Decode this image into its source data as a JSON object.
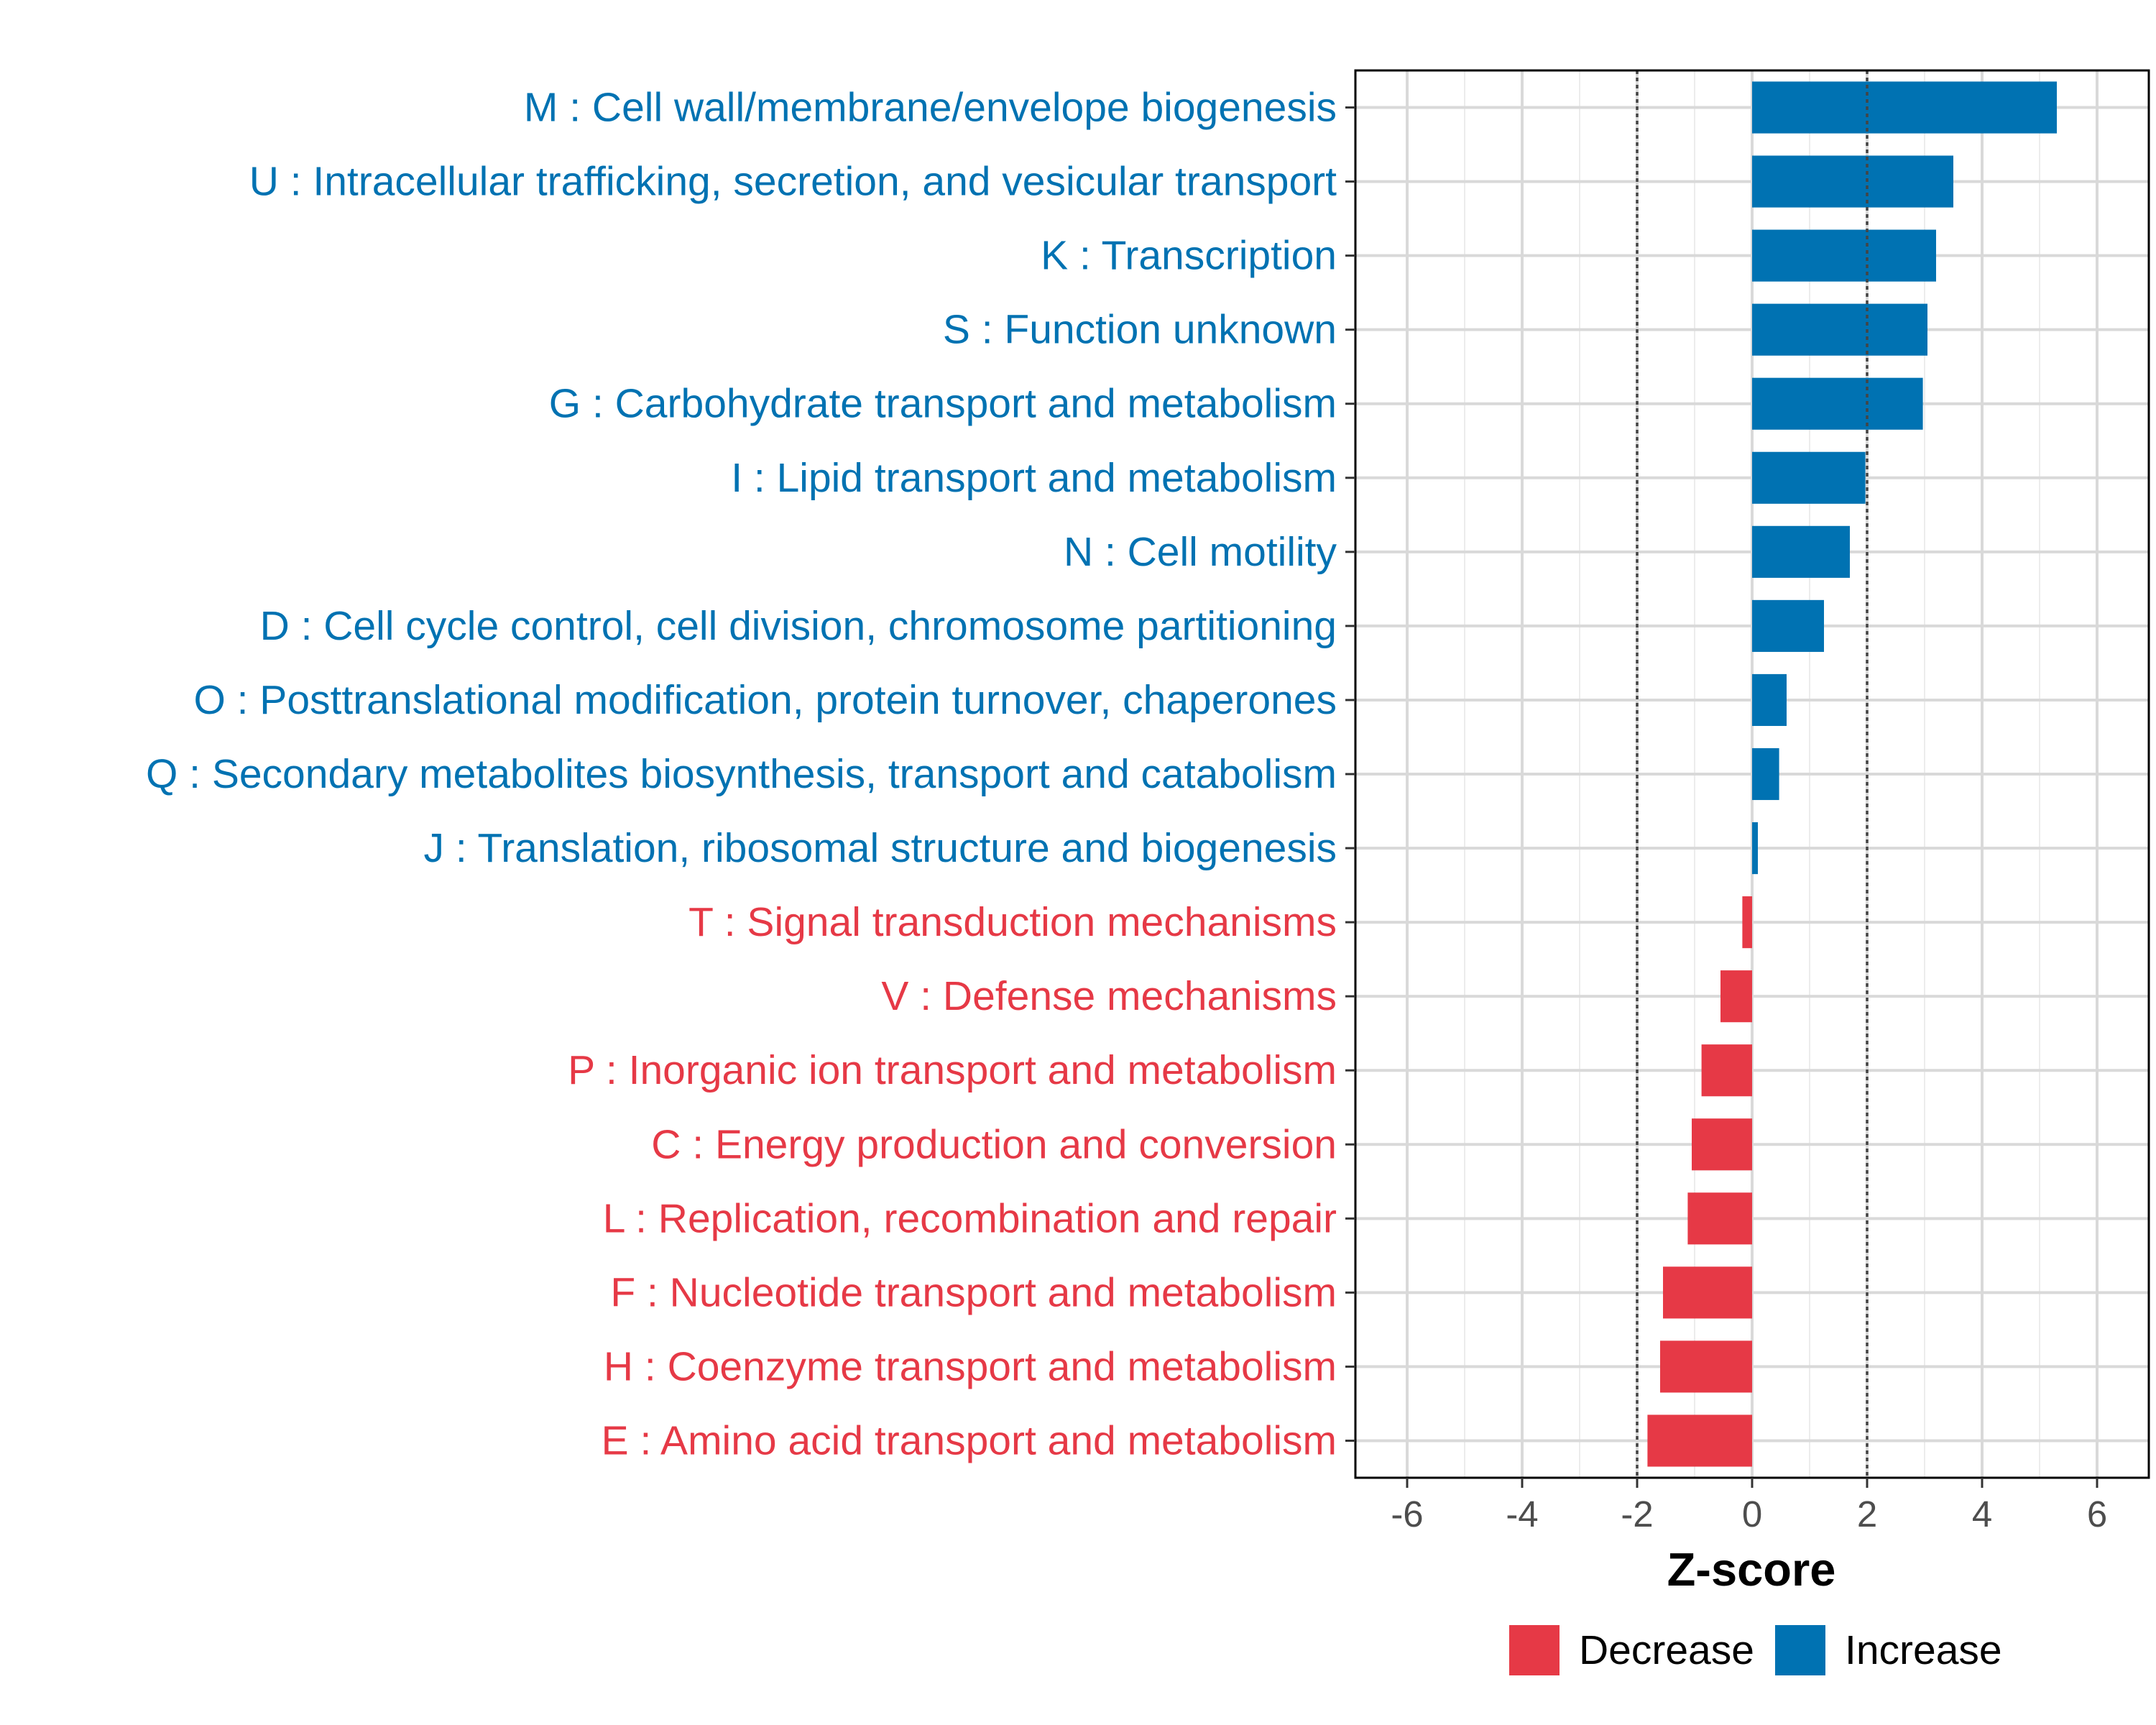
{
  "chart_data": {
    "type": "bar",
    "orientation": "horizontal",
    "xlabel": "Z-score",
    "xlim": [
      -6.9,
      6.9
    ],
    "xticks": [
      -6,
      -4,
      -2,
      0,
      2,
      4,
      6
    ],
    "tick_labels": [
      "-6",
      "-4",
      "-2",
      "0",
      "2",
      "4",
      "6"
    ],
    "reference_lines": [
      -2,
      2
    ],
    "grid": true,
    "colors": {
      "Increase": "#0072b2",
      "Decrease": "#e63946"
    },
    "legend": {
      "position": "bottom",
      "entries": [
        {
          "name": "Decrease",
          "color": "#e63946"
        },
        {
          "name": "Increase",
          "color": "#0072b2"
        }
      ]
    },
    "categories": [
      {
        "label": "M : Cell wall/membrane/envelope biogenesis",
        "value": 5.3,
        "group": "Increase"
      },
      {
        "label": "U : Intracellular trafficking, secretion, and vesicular transport",
        "value": 3.5,
        "group": "Increase"
      },
      {
        "label": "K : Transcription",
        "value": 3.2,
        "group": "Increase"
      },
      {
        "label": "S : Function unknown",
        "value": 3.05,
        "group": "Increase"
      },
      {
        "label": "G : Carbohydrate transport and metabolism",
        "value": 2.97,
        "group": "Increase"
      },
      {
        "label": "I : Lipid transport and metabolism",
        "value": 1.97,
        "group": "Increase"
      },
      {
        "label": "N : Cell motility",
        "value": 1.7,
        "group": "Increase"
      },
      {
        "label": "D : Cell cycle control, cell division, chromosome partitioning",
        "value": 1.25,
        "group": "Increase"
      },
      {
        "label": "O : Posttranslational modification, protein turnover, chaperones",
        "value": 0.6,
        "group": "Increase"
      },
      {
        "label": "Q : Secondary metabolites biosynthesis, transport and catabolism",
        "value": 0.47,
        "group": "Increase"
      },
      {
        "label": "J : Translation, ribosomal structure and biogenesis",
        "value": 0.1,
        "group": "Increase"
      },
      {
        "label": "T : Signal transduction mechanisms",
        "value": -0.17,
        "group": "Decrease"
      },
      {
        "label": "V : Defense mechanisms",
        "value": -0.55,
        "group": "Decrease"
      },
      {
        "label": "P : Inorganic ion transport and metabolism",
        "value": -0.88,
        "group": "Decrease"
      },
      {
        "label": "C : Energy production and conversion",
        "value": -1.05,
        "group": "Decrease"
      },
      {
        "label": "L : Replication, recombination and repair",
        "value": -1.12,
        "group": "Decrease"
      },
      {
        "label": "F : Nucleotide transport and metabolism",
        "value": -1.55,
        "group": "Decrease"
      },
      {
        "label": "H : Coenzyme transport and metabolism",
        "value": -1.6,
        "group": "Decrease"
      },
      {
        "label": "E : Amino acid transport and metabolism",
        "value": -1.82,
        "group": "Decrease"
      }
    ]
  }
}
